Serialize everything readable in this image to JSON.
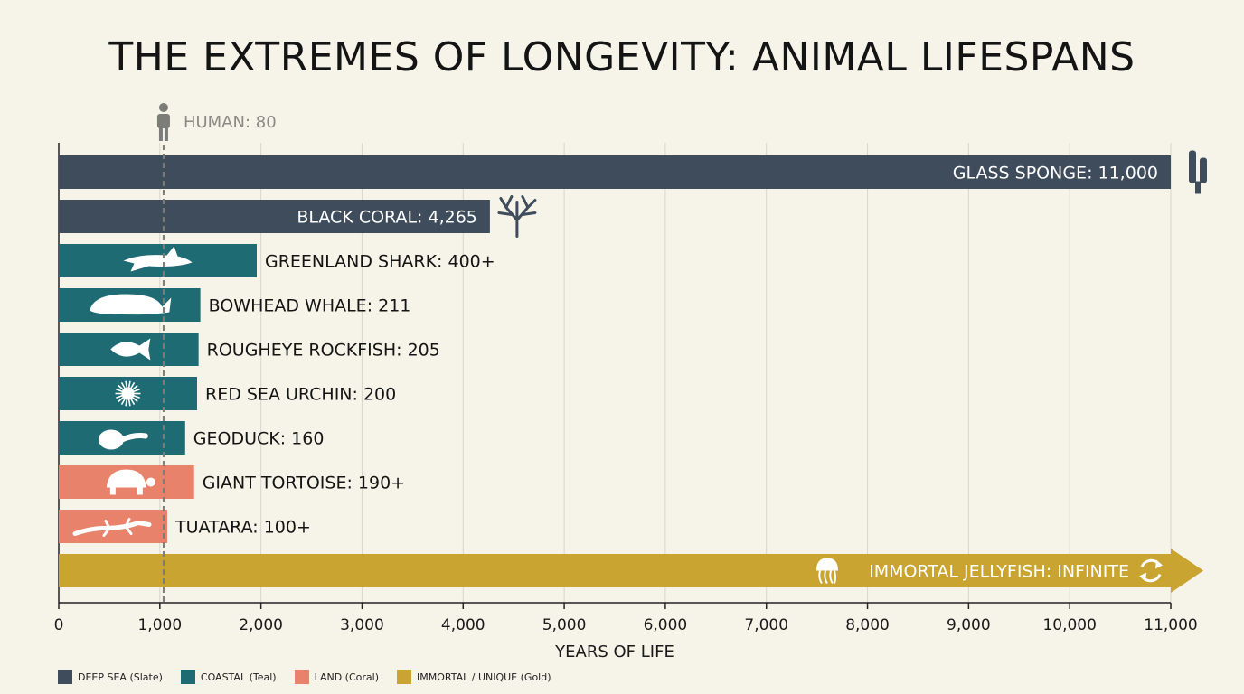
{
  "colors": {
    "background": "#f6f3e8",
    "deep_sea": "#3e4c5c",
    "coastal": "#1f6b73",
    "land": "#e8826b",
    "immortal": "#c9a430",
    "grid": "#d8d6cc",
    "reference": "#7c7c78"
  },
  "chart_data": {
    "type": "bar",
    "orientation": "horizontal",
    "title": "THE EXTREMES OF LONGEVITY: ANIMAL LIFESPANS",
    "xlabel": "YEARS OF LIFE",
    "xlim": [
      0,
      11000
    ],
    "xticks": [
      0,
      1000,
      2000,
      3000,
      4000,
      5000,
      6000,
      7000,
      8000,
      9000,
      10000,
      11000
    ],
    "xtick_labels": [
      "0",
      "1,000",
      "2,000",
      "3,000",
      "4,000",
      "5,000",
      "6,000",
      "7,000",
      "8,000",
      "9,000",
      "10,000",
      "11,000"
    ],
    "grid": true,
    "legend_position": "bottom-left",
    "reference_line": {
      "label": "HUMAN: 80",
      "value": 80,
      "icon": "person-icon"
    },
    "bars": [
      {
        "label": "GLASS SPONGE: 11,000",
        "value": 11000,
        "group": "deep_sea",
        "icon": "glass-sponge-icon",
        "label_inside": true
      },
      {
        "label": "BLACK CORAL: 4,265",
        "value": 4265,
        "group": "deep_sea",
        "icon": "coral-icon",
        "label_inside": true
      },
      {
        "label": "GREENLAND SHARK: 400+",
        "value": 400,
        "group": "coastal",
        "icon": "shark-icon"
      },
      {
        "label": "BOWHEAD WHALE: 211",
        "value": 211,
        "group": "coastal",
        "icon": "whale-icon"
      },
      {
        "label": "ROUGHEYE ROCKFISH: 205",
        "value": 205,
        "group": "coastal",
        "icon": "fish-icon"
      },
      {
        "label": "RED SEA URCHIN: 200",
        "value": 200,
        "group": "coastal",
        "icon": "urchin-icon"
      },
      {
        "label": "GEODUCK: 160",
        "value": 160,
        "group": "coastal",
        "icon": "clam-icon"
      },
      {
        "label": "GIANT TORTOISE: 190+",
        "value": 190,
        "group": "land",
        "icon": "tortoise-icon"
      },
      {
        "label": "TUATARA: 100+",
        "value": 100,
        "group": "land",
        "icon": "lizard-icon"
      },
      {
        "label": "IMMORTAL JELLYFISH: INFINITE",
        "value": null,
        "infinite": true,
        "group": "immortal",
        "icon": "jellyfish-icon",
        "label_inside": true
      }
    ],
    "legend": [
      {
        "label": "DEEP SEA (Slate)",
        "group": "deep_sea"
      },
      {
        "label": "COASTAL (Teal)",
        "group": "coastal"
      },
      {
        "label": "LAND (Coral)",
        "group": "land"
      },
      {
        "label": "IMMORTAL / UNIQUE (Gold)",
        "group": "immortal"
      }
    ]
  }
}
